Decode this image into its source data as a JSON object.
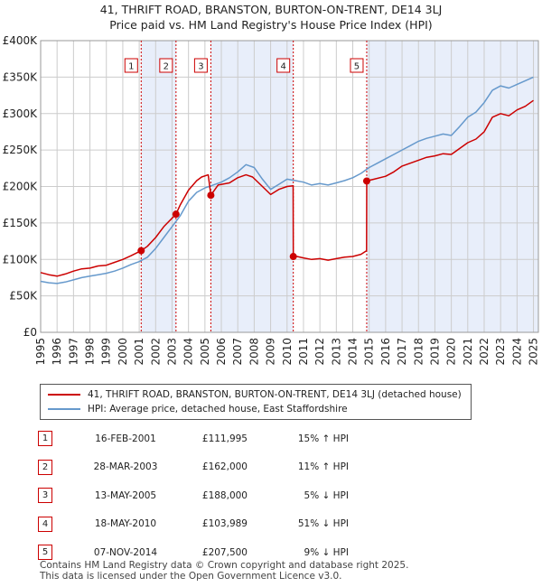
{
  "title_line1": "41, THRIFT ROAD, BRANSTON, BURTON-ON-TRENT, DE14 3LJ",
  "title_line2": "Price paid vs. HM Land Registry's House Price Index (HPI)",
  "colors": {
    "property": "#cc0000",
    "hpi": "#6699cc",
    "shade": "#e8eefa",
    "grid": "#cccccc",
    "vline": "#cc0000"
  },
  "legend": {
    "property": "41, THRIFT ROAD, BRANSTON, BURTON-ON-TRENT, DE14 3LJ (detached house)",
    "hpi": "HPI: Average price, detached house, East Staffordshire"
  },
  "sales": [
    {
      "num": "1",
      "date": "16-FEB-2001",
      "price": "£111,995",
      "hpi": "15% ↑ HPI"
    },
    {
      "num": "2",
      "date": "28-MAR-2003",
      "price": "£162,000",
      "hpi": "11% ↑ HPI"
    },
    {
      "num": "3",
      "date": "13-MAY-2005",
      "price": "£188,000",
      "hpi": "5% ↓ HPI"
    },
    {
      "num": "4",
      "date": "18-MAY-2010",
      "price": "£103,989",
      "hpi": "51% ↓ HPI"
    },
    {
      "num": "5",
      "date": "07-NOV-2014",
      "price": "£207,500",
      "hpi": "9% ↓ HPI"
    }
  ],
  "footer_line1": "Contains HM Land Registry data © Crown copyright and database right 2025.",
  "footer_line2": "This data is licensed under the Open Government Licence v3.0.",
  "chart_data": {
    "type": "line",
    "title": "41, THRIFT ROAD, BRANSTON, BURTON-ON-TRENT, DE14 3LJ",
    "subtitle": "Price paid vs. HM Land Registry's House Price Index (HPI)",
    "xlabel": "",
    "ylabel": "",
    "xlim": [
      1995,
      2025.3
    ],
    "ylim": [
      0,
      400000
    ],
    "x_ticks": [
      1995,
      1996,
      1997,
      1998,
      1999,
      2000,
      2001,
      2002,
      2003,
      2004,
      2005,
      2006,
      2007,
      2008,
      2009,
      2010,
      2011,
      2012,
      2013,
      2014,
      2015,
      2016,
      2017,
      2018,
      2019,
      2020,
      2021,
      2022,
      2023,
      2024,
      2025
    ],
    "y_ticks": [
      0,
      50000,
      100000,
      150000,
      200000,
      250000,
      300000,
      350000,
      400000
    ],
    "y_tick_labels": [
      "£0",
      "£50K",
      "£100K",
      "£150K",
      "£200K",
      "£250K",
      "£300K",
      "£350K",
      "£400K"
    ],
    "grid": true,
    "legend_position": "bottom",
    "shaded_periods": [
      [
        2001.12,
        2003.24
      ],
      [
        2005.36,
        2010.38
      ],
      [
        2014.85,
        2025.3
      ]
    ],
    "sale_markers": [
      {
        "label": "1",
        "x": 2001.12,
        "y": 111995
      },
      {
        "label": "2",
        "x": 2003.24,
        "y": 162000
      },
      {
        "label": "3",
        "x": 2005.36,
        "y": 188000
      },
      {
        "label": "4",
        "x": 2010.38,
        "y": 103989
      },
      {
        "label": "5",
        "x": 2014.85,
        "y": 207500
      }
    ],
    "series": [
      {
        "name": "41, THRIFT ROAD, BRANSTON, BURTON-ON-TRENT, DE14 3LJ (detached house)",
        "x": [
          1995,
          1995.5,
          1996,
          1996.5,
          1997,
          1997.5,
          1998,
          1998.5,
          1999,
          1999.5,
          2000,
          2000.5,
          2001.12,
          2001.5,
          2002,
          2002.5,
          2003.24,
          2003.5,
          2004,
          2004.5,
          2004.8,
          2005.2,
          2005.36,
          2005.8,
          2006.5,
          2007,
          2007.5,
          2007.9,
          2008.5,
          2009,
          2009.5,
          2010,
          2010.37,
          2010.38,
          2010.6,
          2011,
          2011.5,
          2012,
          2012.5,
          2013,
          2013.5,
          2014,
          2014.5,
          2014.84,
          2014.85,
          2015.3,
          2016,
          2016.5,
          2017,
          2017.5,
          2018,
          2018.5,
          2019,
          2019.5,
          2020,
          2020.5,
          2021,
          2021.5,
          2022,
          2022.5,
          2023,
          2023.5,
          2024,
          2024.5,
          2025
        ],
        "y": [
          82000,
          79000,
          77000,
          80000,
          84000,
          87000,
          88000,
          91000,
          92000,
          96000,
          100000,
          105000,
          111995,
          118000,
          130000,
          145000,
          162000,
          175000,
          195000,
          208000,
          213000,
          216000,
          188000,
          202000,
          205000,
          212000,
          216000,
          213000,
          200000,
          189000,
          196000,
          200000,
          201000,
          103989,
          104000,
          102000,
          100000,
          101000,
          99000,
          101000,
          103000,
          104000,
          107000,
          112000,
          207500,
          210000,
          214000,
          220000,
          228000,
          232000,
          236000,
          240000,
          242000,
          245000,
          244000,
          252000,
          260000,
          265000,
          275000,
          295000,
          300000,
          297000,
          305000,
          310000,
          318000
        ]
      },
      {
        "name": "HPI: Average price, detached house, East Staffordshire",
        "x": [
          1995,
          1995.5,
          1996,
          1996.5,
          1997,
          1997.5,
          1998,
          1998.5,
          1999,
          1999.5,
          2000,
          2000.5,
          2001,
          2001.5,
          2002,
          2002.5,
          2003,
          2003.5,
          2004,
          2004.5,
          2005,
          2005.5,
          2006,
          2006.5,
          2007,
          2007.5,
          2008,
          2008.5,
          2009,
          2009.5,
          2010,
          2010.5,
          2011,
          2011.5,
          2012,
          2012.5,
          2013,
          2013.5,
          2014,
          2014.5,
          2015,
          2015.5,
          2016,
          2016.5,
          2017,
          2017.5,
          2018,
          2018.5,
          2019,
          2019.5,
          2020,
          2020.5,
          2021,
          2021.5,
          2022,
          2022.5,
          2023,
          2023.5,
          2024,
          2024.5,
          2025
        ],
        "y": [
          70000,
          68000,
          67000,
          69000,
          72000,
          75000,
          77000,
          79000,
          81000,
          84000,
          88000,
          93000,
          97000,
          103000,
          115000,
          130000,
          145000,
          160000,
          180000,
          192000,
          198000,
          202000,
          206000,
          212000,
          220000,
          230000,
          226000,
          210000,
          196000,
          203000,
          210000,
          208000,
          206000,
          202000,
          204000,
          202000,
          205000,
          208000,
          212000,
          218000,
          226000,
          232000,
          238000,
          244000,
          250000,
          256000,
          262000,
          266000,
          269000,
          272000,
          270000,
          282000,
          295000,
          302000,
          315000,
          332000,
          338000,
          335000,
          340000,
          345000,
          350000
        ]
      }
    ]
  }
}
